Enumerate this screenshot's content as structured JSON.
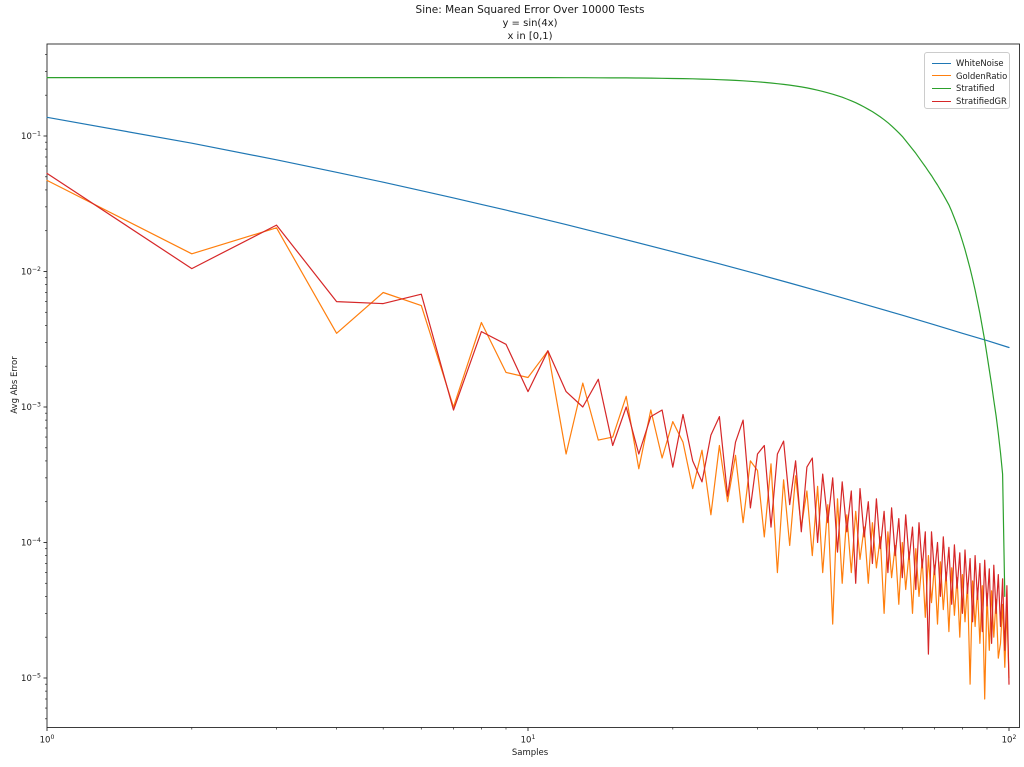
{
  "chart_data": {
    "type": "line",
    "title": "Sine: Mean Squared Error Over 10000 Tests",
    "subtitle1": "y = sin(4x)",
    "subtitle2": "x in [0,1)",
    "xlabel": "Samples",
    "ylabel": "Avg Abs Error",
    "x_scale": "log",
    "y_scale": "log",
    "xlim": [
      1,
      105
    ],
    "ylim": [
      4.3e-06,
      0.477
    ],
    "grid": false,
    "legend_position": "upper right",
    "x_major_tick_exponents": [
      0,
      1,
      2
    ],
    "y_major_tick_exponents": [
      -1,
      -2,
      -3,
      -4,
      -5
    ],
    "series": [
      {
        "name": "WhiteNoise",
        "color": "#1f77b4",
        "x": [
          1,
          2,
          3,
          4,
          5,
          6,
          7,
          8,
          9,
          10,
          12,
          15,
          20,
          25,
          30,
          35,
          40,
          45,
          50,
          60,
          70,
          80,
          90,
          100
        ],
        "y": [
          0.1374,
          0.0885,
          0.0667,
          0.054,
          0.0456,
          0.0395,
          0.0349,
          0.0313,
          0.0284,
          0.026,
          0.0222,
          0.0182,
          0.014,
          0.0114,
          0.00956,
          0.00822,
          0.0072,
          0.0064,
          0.00574,
          0.00476,
          0.00404,
          0.0035,
          0.00309,
          0.00275
        ]
      },
      {
        "name": "GoldenRatio",
        "color": "#ff7f0e",
        "x_start": 1,
        "y": [
          0.047,
          0.0135,
          0.021,
          0.0035,
          0.007,
          0.0056,
          0.001,
          0.0042,
          0.0018,
          0.00165,
          0.0026,
          0.00045,
          0.0015,
          0.00057,
          0.0006,
          0.0012,
          0.00035,
          0.00095,
          0.00042,
          0.00078,
          0.00055,
          0.00025,
          0.00048,
          0.00016,
          0.00052,
          0.0002,
          0.00044,
          0.00014,
          0.0004,
          0.00034,
          0.00011,
          0.00038,
          6e-05,
          0.00029,
          9.5e-05,
          0.00031,
          0.00013,
          0.00024,
          8e-05,
          0.00026,
          6e-05,
          0.00019,
          2.5e-05,
          0.00021,
          5e-05,
          0.00016,
          6e-05,
          0.00017,
          7.5e-05,
          0.00013,
          5e-05,
          0.00014,
          6.5e-05,
          0.00011,
          3e-05,
          0.00012,
          5.5e-05,
          9.5e-05,
          3.5e-05,
          0.0001,
          4.5e-05,
          8.5e-05,
          3e-05,
          9e-05,
          4e-05,
          7.5e-05,
          2.8e-05,
          8e-05,
          3.6e-05,
          6.8e-05,
          2.5e-05,
          7.2e-05,
          3.2e-05,
          6e-05,
          2.2e-05,
          6.5e-05,
          2.9e-05,
          5.5e-05,
          2e-05,
          5.8e-05,
          2.6e-05,
          5e-05,
          9e-06,
          5.2e-05,
          2.4e-05,
          4.6e-05,
          1.8e-05,
          4.8e-05,
          7e-06,
          4.2e-05,
          1.6e-05,
          4.4e-05,
          2e-05,
          3.8e-05,
          1.4e-05,
          1.8e-05,
          3.5e-05,
          1.2e-05,
          3.2e-05,
          1e-05
        ]
      },
      {
        "name": "Stratified",
        "color": "#2ca02c",
        "x_start": 1,
        "y": [
          0.27,
          0.27,
          0.27,
          0.27,
          0.27,
          0.27,
          0.27,
          0.2699,
          0.2698,
          0.2697,
          0.2696,
          0.2695,
          0.2693,
          0.269,
          0.2686,
          0.2682,
          0.2678,
          0.2673,
          0.2666,
          0.2659,
          0.2651,
          0.2642,
          0.2631,
          0.2619,
          0.2605,
          0.2589,
          0.2572,
          0.2554,
          0.2534,
          0.2513,
          0.2488,
          0.2462,
          0.2434,
          0.2404,
          0.2373,
          0.2339,
          0.2303,
          0.2264,
          0.2222,
          0.2178,
          0.2132,
          0.2084,
          0.2035,
          0.1984,
          0.1932,
          0.1876,
          0.1819,
          0.176,
          0.1699,
          0.1637,
          0.1575,
          0.1513,
          0.1449,
          0.1384,
          0.132,
          0.1253,
          0.1187,
          0.112,
          0.1056,
          0.0993,
          0.0925,
          0.086,
          0.08,
          0.0745,
          0.069,
          0.064,
          0.0595,
          0.055,
          0.051,
          0.047,
          0.0435,
          0.04,
          0.0368,
          0.0338,
          0.031,
          0.0278,
          0.0248,
          0.022,
          0.0193,
          0.0168,
          0.0145,
          0.0124,
          0.0105,
          0.0088,
          0.0073,
          0.006,
          0.0049,
          0.0039,
          0.0031,
          0.00242,
          0.00188,
          0.00146,
          0.00112,
          0.00086,
          0.00064,
          0.00046,
          0.00032,
          4e-05
        ]
      },
      {
        "name": "StratifiedGR",
        "color": "#d62728",
        "x_start": 1,
        "y": [
          0.053,
          0.0105,
          0.022,
          0.006,
          0.0058,
          0.0068,
          0.00095,
          0.0036,
          0.0029,
          0.0013,
          0.0026,
          0.0013,
          0.001,
          0.0016,
          0.00052,
          0.001,
          0.00045,
          0.00085,
          0.00095,
          0.00036,
          0.00088,
          0.0004,
          0.00028,
          0.00062,
          0.00085,
          0.00022,
          0.00055,
          0.0008,
          0.00018,
          0.00045,
          0.00052,
          0.00013,
          0.00045,
          0.00056,
          0.00019,
          0.0004,
          0.00012,
          0.00036,
          0.00042,
          0.0001,
          0.00032,
          0.00014,
          0.0003,
          8.5e-05,
          0.00028,
          0.00012,
          0.00024,
          5e-05,
          0.00025,
          0.00011,
          0.0002,
          7e-05,
          0.00021,
          9e-05,
          0.00017,
          6e-05,
          0.00018,
          8e-05,
          0.00015,
          5.5e-05,
          0.00016,
          7.5e-05,
          0.00013,
          4.5e-05,
          0.00014,
          6.5e-05,
          0.00012,
          1.5e-05,
          0.00012,
          5.8e-05,
          0.0001,
          4e-05,
          0.00011,
          5.2e-05,
          9.2e-05,
          3.5e-05,
          9.6e-05,
          4.6e-05,
          8.4e-05,
          3e-05,
          8.8e-05,
          4.2e-05,
          7.6e-05,
          2.6e-05,
          8e-05,
          3.8e-05,
          7e-05,
          2.2e-05,
          7.4e-05,
          3.4e-05,
          6.4e-05,
          1.8e-05,
          6.8e-05,
          3e-05,
          5.8e-05,
          2.4e-05,
          5.4e-05,
          1.6e-05,
          4.8e-05,
          9e-06
        ]
      }
    ]
  }
}
